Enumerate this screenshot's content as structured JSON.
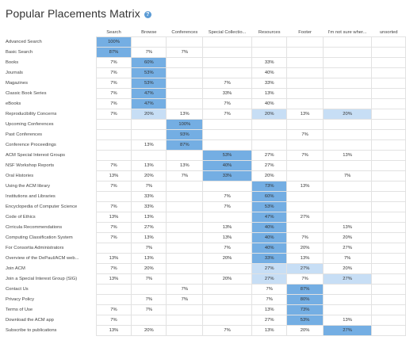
{
  "page": {
    "title": "Popular Placements Matrix",
    "help_icon": "info-circle-icon"
  },
  "colors": {
    "strong": "#74aee3",
    "light": "#c7def5",
    "grid": "#e2e2e2"
  },
  "columns": [
    "Search",
    "Browse",
    "Conferences",
    "Special Collectio...",
    "Resources",
    "Footer",
    "I'm not sure wher...",
    "unsorted"
  ],
  "rows": [
    {
      "label": "Advanced Search",
      "cells": [
        "100%",
        "",
        "",
        "",
        "",
        "",
        "",
        ""
      ],
      "hi": [
        0
      ]
    },
    {
      "label": "Basic Search",
      "cells": [
        "87%",
        "7%",
        "7%",
        "",
        "",
        "",
        "",
        ""
      ],
      "hi": [
        0
      ]
    },
    {
      "label": "Books",
      "cells": [
        "7%",
        "60%",
        "",
        "",
        "33%",
        "",
        "",
        ""
      ],
      "hi": [
        1
      ]
    },
    {
      "label": "Journals",
      "cells": [
        "7%",
        "53%",
        "",
        "",
        "40%",
        "",
        "",
        ""
      ],
      "hi": [
        1
      ]
    },
    {
      "label": "Magazines",
      "cells": [
        "7%",
        "53%",
        "",
        "7%",
        "33%",
        "",
        "",
        ""
      ],
      "hi": [
        1
      ]
    },
    {
      "label": "Classic Book Series",
      "cells": [
        "7%",
        "47%",
        "",
        "33%",
        "13%",
        "",
        "",
        ""
      ],
      "hi": [
        1
      ]
    },
    {
      "label": "eBooks",
      "cells": [
        "7%",
        "47%",
        "",
        "7%",
        "40%",
        "",
        "",
        ""
      ],
      "hi": [
        1
      ]
    },
    {
      "label": "Reproducibility Concerns",
      "cells": [
        "7%",
        "20%",
        "13%",
        "7%",
        "20%",
        "13%",
        "20%",
        ""
      ],
      "lo": [
        1,
        4,
        6
      ]
    },
    {
      "label": "Upcoming Conferences",
      "cells": [
        "",
        "",
        "100%",
        "",
        "",
        "",
        "",
        ""
      ],
      "hi": [
        2
      ]
    },
    {
      "label": "Past Conferences",
      "cells": [
        "",
        "",
        "93%",
        "",
        "",
        "7%",
        "",
        ""
      ],
      "hi": [
        2
      ]
    },
    {
      "label": "Conference Proceedings",
      "cells": [
        "",
        "13%",
        "87%",
        "",
        "",
        "",
        "",
        ""
      ],
      "hi": [
        2
      ]
    },
    {
      "label": "ACM Special Interest Groups",
      "cells": [
        "",
        "",
        "",
        "53%",
        "27%",
        "7%",
        "13%",
        ""
      ],
      "hi": [
        3
      ]
    },
    {
      "label": "NSF Workshop Reports",
      "cells": [
        "7%",
        "13%",
        "13%",
        "40%",
        "27%",
        "",
        "",
        ""
      ],
      "hi": [
        3
      ]
    },
    {
      "label": "Oral Histories",
      "cells": [
        "13%",
        "20%",
        "7%",
        "33%",
        "20%",
        "",
        "7%",
        ""
      ],
      "hi": [
        3
      ]
    },
    {
      "label": "Using the ACM library",
      "cells": [
        "7%",
        "7%",
        "",
        "",
        "73%",
        "13%",
        "",
        ""
      ],
      "hi": [
        4
      ]
    },
    {
      "label": "Institutions and Libraries",
      "cells": [
        "",
        "33%",
        "",
        "7%",
        "60%",
        "",
        "",
        ""
      ],
      "hi": [
        4
      ]
    },
    {
      "label": "Encyclopedia of Computer Science",
      "cells": [
        "7%",
        "33%",
        "",
        "7%",
        "53%",
        "",
        "",
        ""
      ],
      "hi": [
        4
      ]
    },
    {
      "label": "Code of Ethics",
      "cells": [
        "13%",
        "13%",
        "",
        "",
        "47%",
        "27%",
        "",
        ""
      ],
      "hi": [
        4
      ]
    },
    {
      "label": "Cirricula Recommendations",
      "cells": [
        "7%",
        "27%",
        "",
        "13%",
        "40%",
        "",
        "13%",
        ""
      ],
      "hi": [
        4
      ]
    },
    {
      "label": "Computing Classification System",
      "cells": [
        "7%",
        "13%",
        "",
        "13%",
        "40%",
        "7%",
        "20%",
        ""
      ],
      "hi": [
        4
      ]
    },
    {
      "label": "For Consortia Administrators",
      "cells": [
        "",
        "7%",
        "",
        "7%",
        "40%",
        "20%",
        "27%",
        ""
      ],
      "hi": [
        4
      ]
    },
    {
      "label": "Overview of the DePaul/ACM web...",
      "cells": [
        "13%",
        "13%",
        "",
        "20%",
        "33%",
        "13%",
        "7%",
        ""
      ],
      "hi": [
        4
      ]
    },
    {
      "label": "Join ACM",
      "cells": [
        "7%",
        "20%",
        "",
        "",
        "27%",
        "27%",
        "20%",
        ""
      ],
      "lo": [
        4,
        5
      ]
    },
    {
      "label": "Join a Special Interest Group (SIG)",
      "cells": [
        "13%",
        "7%",
        "",
        "20%",
        "27%",
        "7%",
        "27%",
        ""
      ],
      "lo": [
        4,
        6
      ]
    },
    {
      "label": "Contact Us",
      "cells": [
        "",
        "",
        "7%",
        "",
        "7%",
        "87%",
        "",
        ""
      ],
      "hi": [
        5
      ]
    },
    {
      "label": "Privacy Policy",
      "cells": [
        "",
        "7%",
        "7%",
        "",
        "7%",
        "80%",
        "",
        ""
      ],
      "hi": [
        5
      ]
    },
    {
      "label": "Terms of Use",
      "cells": [
        "7%",
        "7%",
        "",
        "",
        "13%",
        "73%",
        "",
        ""
      ],
      "hi": [
        5
      ]
    },
    {
      "label": "Download the ACM app",
      "cells": [
        "7%",
        "",
        "",
        "",
        "27%",
        "53%",
        "13%",
        ""
      ],
      "hi": [
        5
      ]
    },
    {
      "label": "Subscribe to publications",
      "cells": [
        "13%",
        "20%",
        "",
        "7%",
        "13%",
        "20%",
        "27%",
        ""
      ],
      "hi": [
        6
      ]
    }
  ]
}
